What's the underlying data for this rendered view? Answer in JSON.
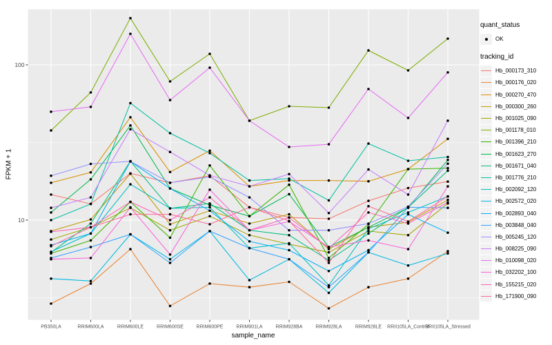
{
  "chart_data": {
    "type": "line",
    "title": "",
    "xlabel": "sample_name",
    "ylabel": "FPKM + 1",
    "y_scale": "log10",
    "ylim": [
      2.29,
      227
    ],
    "yticks": [
      10,
      100
    ],
    "ytick_labels": [
      "10",
      "100"
    ],
    "y_minor_ticks": [
      3.162,
      31.62
    ],
    "grid": "on",
    "panel_background": "#EBEBEB",
    "gridline_color": "#FFFFFF",
    "point_color": "#000000",
    "legend_position": "right",
    "categories": [
      "PB350LA",
      "RRIM600LA",
      "RRIM600LE",
      "RRIM600SE",
      "RRIM600PE",
      "RRIM901LA",
      "RRIM928BA",
      "RRIM928LA",
      "RRIM928LE",
      "RRII105LA_Control",
      "RRII105LA_Stressed"
    ],
    "series": [
      {
        "name": "Hb_000173_310",
        "color": "#F8766D",
        "values": [
          14.6,
          12.7,
          20.0,
          17.4,
          19.3,
          12.1,
          10.4,
          10.2,
          13.3,
          16.1,
          17.7
        ]
      },
      {
        "name": "Hb_000176_020",
        "color": "#EA8331",
        "values": [
          2.9,
          3.9,
          6.5,
          2.8,
          3.9,
          3.7,
          4.0,
          2.7,
          3.7,
          4.2,
          6.3
        ]
      },
      {
        "name": "Hb_000270_470",
        "color": "#D89000",
        "values": [
          17.4,
          20.3,
          46.0,
          20.4,
          28.0,
          16.5,
          18.0,
          18.0,
          17.8,
          21.3,
          33.4
        ]
      },
      {
        "name": "Hb_000300_260",
        "color": "#C09B00",
        "values": [
          8.5,
          10.1,
          19.9,
          9.4,
          11.5,
          9.5,
          10.9,
          6.5,
          9.0,
          9.7,
          13.5
        ]
      },
      {
        "name": "Hb_001025_090",
        "color": "#A3A500",
        "values": [
          7.5,
          9.0,
          12.0,
          8.6,
          10.6,
          8.0,
          7.0,
          6.2,
          8.5,
          8.0,
          12.8
        ]
      },
      {
        "name": "Hb_001178_010",
        "color": "#7CAE00",
        "values": [
          37.8,
          66.4,
          200.0,
          78.2,
          117.8,
          43.7,
          54.1,
          53.0,
          123.9,
          92.1,
          147.6
        ]
      },
      {
        "name": "Hb_001396_210",
        "color": "#39B600",
        "values": [
          6.1,
          7.4,
          13.1,
          7.7,
          22.5,
          10.6,
          16.9,
          5.7,
          9.4,
          21.3,
          21.6
        ]
      },
      {
        "name": "Hb_001623_270",
        "color": "#00BB4E",
        "values": [
          11.2,
          18.3,
          40.7,
          16.0,
          12.5,
          10.6,
          14.7,
          6.7,
          9.0,
          12.0,
          24.4
        ]
      },
      {
        "name": "Hb_001671_040",
        "color": "#00BF7D",
        "values": [
          6.2,
          9.5,
          24.0,
          11.9,
          12.8,
          8.6,
          8.0,
          5.5,
          8.2,
          12.1,
          20.8
        ]
      },
      {
        "name": "Hb_001776_210",
        "color": "#00C1A3",
        "values": [
          10.0,
          12.7,
          56.7,
          36.3,
          27.0,
          18.0,
          18.5,
          13.4,
          31.1,
          24.1,
          25.5
        ]
      },
      {
        "name": "Hb_002092_120",
        "color": "#00BFC4",
        "values": [
          6.25,
          8.2,
          17.0,
          11.9,
          12.1,
          6.6,
          7.1,
          3.8,
          8.8,
          11.2,
          14.2
        ]
      },
      {
        "name": "Hb_002572_020",
        "color": "#00BAE0",
        "values": [
          4.2,
          4.05,
          8.1,
          5.6,
          8.5,
          4.1,
          5.6,
          3.4,
          6.2,
          5.1,
          6.1
        ]
      },
      {
        "name": "Hb_002893_040",
        "color": "#00B0F6",
        "values": [
          6.9,
          8.2,
          23.9,
          16.0,
          11.5,
          7.3,
          6.4,
          4.7,
          6.4,
          10.9,
          8.3
        ]
      },
      {
        "name": "Hb_003848_040",
        "color": "#35A2FF",
        "values": [
          5.7,
          6.7,
          8.1,
          5.3,
          8.5,
          6.6,
          5.6,
          3.7,
          6.2,
          12.1,
          12.0
        ]
      },
      {
        "name": "Hb_005245_120",
        "color": "#9590FF",
        "values": [
          19.3,
          23.0,
          23.9,
          17.4,
          19.0,
          14.0,
          8.6,
          8.6,
          9.5,
          12.2,
          23.1
        ]
      },
      {
        "name": "Hb_008225_090",
        "color": "#C77CFF",
        "values": [
          12.0,
          14.0,
          38.5,
          27.5,
          19.4,
          16.5,
          19.8,
          11.1,
          21.2,
          14.6,
          43.7
        ]
      },
      {
        "name": "Hb_010098_020",
        "color": "#E76BF3",
        "values": [
          49.9,
          53.6,
          158.5,
          59.3,
          95.9,
          43.7,
          29.6,
          30.8,
          69.9,
          45.5,
          89.4
        ]
      },
      {
        "name": "Hb_032202_100",
        "color": "#FA62DB",
        "values": [
          5.6,
          5.7,
          12.1,
          6.0,
          15.7,
          8.6,
          9.8,
          6.7,
          7.4,
          6.5,
          16.5
        ]
      },
      {
        "name": "Hb_155215_020",
        "color": "#FF62BC",
        "values": [
          8.4,
          9.0,
          13.1,
          10.0,
          14.0,
          8.6,
          10.4,
          6.6,
          11.2,
          9.5,
          13.0
        ]
      },
      {
        "name": "Hb_171900_090",
        "color": "#FF6A98",
        "values": [
          6.8,
          9.0,
          10.9,
          10.9,
          9.4,
          12.1,
          9.9,
          5.3,
          12.3,
          9.8,
          14.2
        ]
      }
    ]
  },
  "legend": {
    "quant_status": {
      "title": "quant_status",
      "items": [
        {
          "label": "OK",
          "marker": "point-icon",
          "color": "#000000"
        }
      ]
    },
    "tracking_id": {
      "title": "tracking_id"
    }
  },
  "axes": {
    "x_title": "sample_name",
    "y_title": "FPKM + 1"
  }
}
